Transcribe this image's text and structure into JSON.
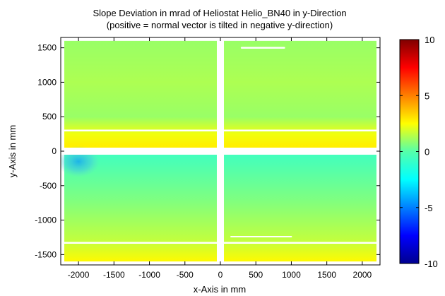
{
  "chart_data": {
    "type": "heatmap",
    "title": "Slope Deviation in mrad of Heliostat Helio_BN40 in y-Direction",
    "subtitle": "(positive = normal vector is tilted in negative y-direction)",
    "xlabel": "x-Axis in mm",
    "ylabel": "y-Axis in mm",
    "xlim": [
      -2250,
      2250
    ],
    "ylim": [
      -1650,
      1650
    ],
    "x_ticks": [
      -2000,
      -1500,
      -1000,
      -500,
      0,
      500,
      1000,
      1500,
      2000
    ],
    "y_ticks": [
      -1500,
      -1000,
      -500,
      0,
      500,
      1000,
      1500
    ],
    "colorbar": {
      "range": [
        -10,
        10
      ],
      "ticks": [
        -10,
        -5,
        0,
        5,
        10
      ],
      "colormap": "jet"
    },
    "facets": [
      {
        "name": "top-left",
        "x": [
          -2200,
          -50
        ],
        "y": [
          50,
          1600
        ],
        "mean": 1.5
      },
      {
        "name": "top-right",
        "x": [
          50,
          2200
        ],
        "y": [
          50,
          1600
        ],
        "mean": 0.8
      },
      {
        "name": "bottom-left",
        "x": [
          -2200,
          -50
        ],
        "y": [
          -1600,
          -50
        ],
        "mean": 0.8
      },
      {
        "name": "bottom-right",
        "x": [
          50,
          2200
        ],
        "y": [
          -1600,
          -50
        ],
        "mean": 0.9
      }
    ],
    "values_by_y": [
      {
        "y": 1600,
        "value": 1.0
      },
      {
        "y": 1000,
        "value": 1.3
      },
      {
        "y": 500,
        "value": 1.0
      },
      {
        "y": 250,
        "value": 2.3
      },
      {
        "y": 80,
        "value": 2.8
      },
      {
        "y": -80,
        "value": -0.5
      },
      {
        "y": -700,
        "value": 0.6
      },
      {
        "y": -1300,
        "value": 1.6
      },
      {
        "y": -1600,
        "value": 2.6
      }
    ],
    "minimum_spot": {
      "x": -2000,
      "y": -150,
      "value": -2.5
    }
  }
}
